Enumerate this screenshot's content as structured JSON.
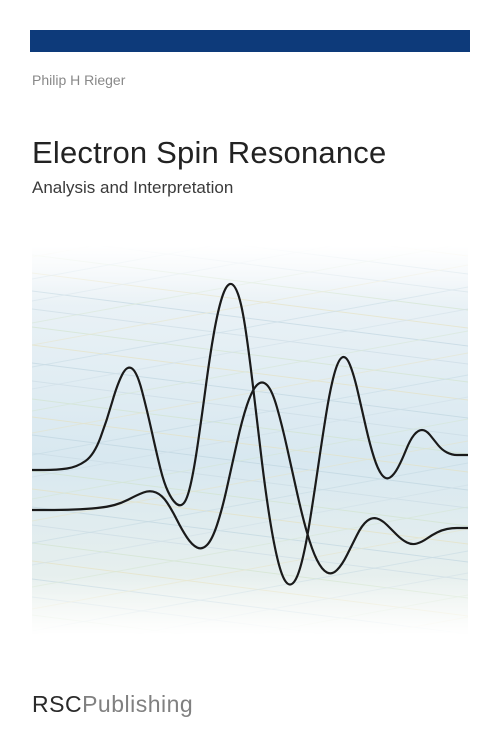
{
  "bar": {
    "color": "#0d3a7a"
  },
  "author": "Philip H Rieger",
  "title": "Electron Spin Resonance",
  "subtitle": "Analysis and Interpretation",
  "publisher": {
    "main": "RSC",
    "sub": "Publishing",
    "main_color": "#2a2a2a",
    "sub_color": "#808080"
  },
  "graphic": {
    "type": "spectrum-plot",
    "background_gradient": {
      "top": "#f0f5f8",
      "mid": "#d8e8f0",
      "bottom": "#eef3ed"
    },
    "grid_colors": [
      "#c7d8e2",
      "#cfe2c7",
      "#e6dfb8",
      "#b8d0dc"
    ],
    "line_color": "#1a1a1a",
    "line_width": 2.2,
    "series": [
      {
        "name": "upper-trace",
        "points": [
          [
            0,
            225
          ],
          [
            25,
            225
          ],
          [
            45,
            222
          ],
          [
            62,
            210
          ],
          [
            75,
            175
          ],
          [
            85,
            140
          ],
          [
            95,
            120
          ],
          [
            105,
            127
          ],
          [
            115,
            165
          ],
          [
            125,
            210
          ],
          [
            132,
            238
          ],
          [
            140,
            255
          ],
          [
            148,
            262
          ],
          [
            155,
            255
          ],
          [
            162,
            225
          ],
          [
            170,
            170
          ],
          [
            178,
            110
          ],
          [
            186,
            65
          ],
          [
            194,
            40
          ],
          [
            202,
            38
          ],
          [
            210,
            60
          ],
          [
            218,
            115
          ],
          [
            226,
            185
          ],
          [
            234,
            250
          ],
          [
            242,
            300
          ],
          [
            250,
            332
          ],
          [
            258,
            342
          ],
          [
            266,
            332
          ],
          [
            274,
            300
          ],
          [
            282,
            250
          ],
          [
            290,
            195
          ],
          [
            298,
            145
          ],
          [
            306,
            115
          ],
          [
            314,
            110
          ],
          [
            322,
            130
          ],
          [
            330,
            165
          ],
          [
            338,
            200
          ],
          [
            346,
            225
          ],
          [
            354,
            235
          ],
          [
            362,
            230
          ],
          [
            370,
            215
          ],
          [
            378,
            195
          ],
          [
            386,
            185
          ],
          [
            394,
            185
          ],
          [
            402,
            195
          ],
          [
            410,
            205
          ],
          [
            420,
            210
          ],
          [
            430,
            210
          ],
          [
            436,
            210
          ]
        ]
      },
      {
        "name": "lower-trace",
        "points": [
          [
            0,
            265
          ],
          [
            30,
            265
          ],
          [
            55,
            264
          ],
          [
            75,
            262
          ],
          [
            90,
            258
          ],
          [
            105,
            250
          ],
          [
            118,
            245
          ],
          [
            130,
            250
          ],
          [
            140,
            265
          ],
          [
            150,
            285
          ],
          [
            160,
            300
          ],
          [
            170,
            305
          ],
          [
            180,
            295
          ],
          [
            190,
            265
          ],
          [
            200,
            220
          ],
          [
            210,
            175
          ],
          [
            220,
            145
          ],
          [
            230,
            135
          ],
          [
            240,
            145
          ],
          [
            250,
            180
          ],
          [
            260,
            225
          ],
          [
            270,
            270
          ],
          [
            280,
            305
          ],
          [
            290,
            325
          ],
          [
            300,
            330
          ],
          [
            310,
            320
          ],
          [
            320,
            300
          ],
          [
            330,
            280
          ],
          [
            340,
            272
          ],
          [
            350,
            275
          ],
          [
            360,
            285
          ],
          [
            370,
            295
          ],
          [
            380,
            300
          ],
          [
            390,
            297
          ],
          [
            400,
            290
          ],
          [
            410,
            285
          ],
          [
            420,
            283
          ],
          [
            430,
            283
          ],
          [
            436,
            283
          ]
        ]
      }
    ]
  }
}
